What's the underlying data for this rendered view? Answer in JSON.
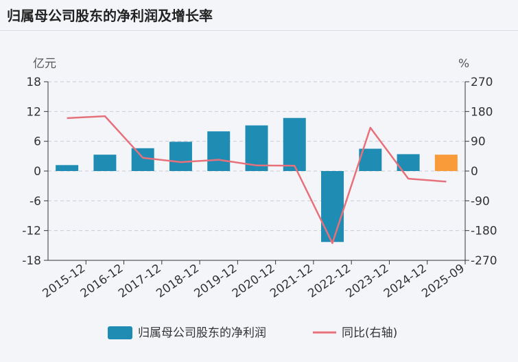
{
  "header": {
    "title": "归属母公司股东的净利润及增长率"
  },
  "chart_data": {
    "type": "bar",
    "left_unit": "亿元",
    "right_unit": "%",
    "categories": [
      "2015-12",
      "2016-12",
      "2017-12",
      "2018-12",
      "2019-12",
      "2020-12",
      "2021-12",
      "2022-12",
      "2023-12",
      "2024-12",
      "2025-09"
    ],
    "series": [
      {
        "name": "归属母公司股东的净利润",
        "axis": "left",
        "type": "bar",
        "values": [
          1.2,
          3.3,
          4.6,
          5.9,
          8.0,
          9.2,
          10.7,
          -14.3,
          4.5,
          3.4,
          3.3
        ],
        "color": "#1f8db3",
        "highlight_last_color": "#f99b38"
      },
      {
        "name": "同比(右轴)",
        "axis": "right",
        "type": "line",
        "values": [
          160,
          166,
          40,
          27,
          34,
          17,
          16,
          -218,
          131,
          -23,
          -32
        ],
        "color": "#e8707a"
      }
    ],
    "left_ticks": [
      "18",
      "12",
      "6",
      "0",
      "-6",
      "-12",
      "-18"
    ],
    "right_ticks": [
      "270",
      "180",
      "90",
      "0",
      "-90",
      "-180",
      "-270"
    ],
    "ylim_left": [
      -18,
      18
    ],
    "ylim_right": [
      -270,
      270
    ],
    "grid": true,
    "legend_position": "bottom"
  }
}
